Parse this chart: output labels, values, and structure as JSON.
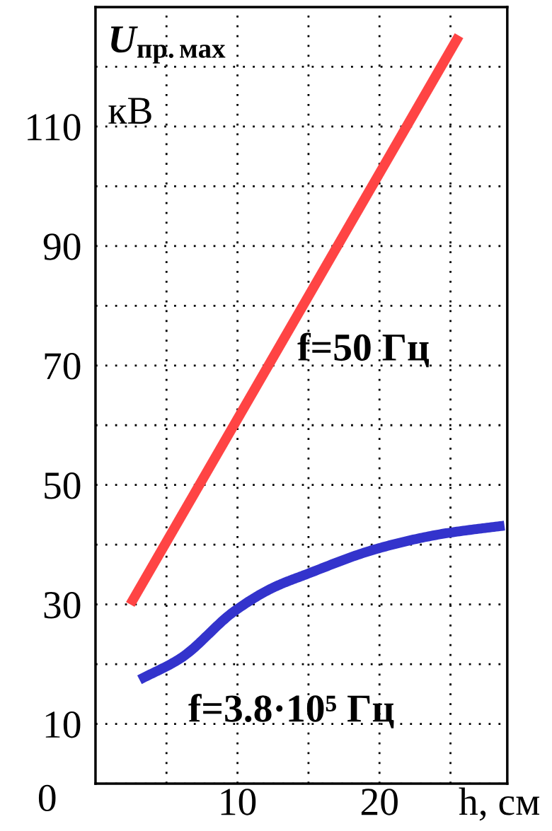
{
  "chart_data": {
    "type": "line",
    "ylabel": "U$_{пр.мах}$\nкВ",
    "xlabel": "h, см",
    "series": [
      {
        "color": "#ff4444",
        "x": [
          2.45,
          25.6
        ],
        "values": [
          30,
          125.2
        ]
      },
      {
        "color": "#3333cc",
        "x": [
          3.1,
          6,
          9.8,
          12.5,
          14.8,
          19.8,
          24.4,
          28.8
        ],
        "values": [
          17.4,
          21,
          28.9,
          32.8,
          35,
          39.3,
          41.8,
          43.2
        ]
      }
    ],
    "annotations": [
      "f=50 Гц",
      "f=3.8·10⁵ Гц"
    ],
    "xlim": [
      0,
      29
    ],
    "ylim": [
      0,
      130
    ],
    "xticks": [
      {
        "value": 5,
        "label": null
      },
      10,
      {
        "value": 15,
        "label": null
      },
      20,
      {
        "value": 25,
        "label": null
      }
    ],
    "yticks": [
      {
        "value": 0,
        "label": "0"
      },
      10,
      {
        "value": 20,
        "label": null
      },
      30,
      {
        "value": 40,
        "label": null
      },
      50,
      {
        "value": 60,
        "label": null
      },
      70,
      {
        "value": 80,
        "label": null
      },
      90,
      {
        "value": 100,
        "label": null
      },
      110,
      {
        "value": 120,
        "label": null
      }
    ],
    "grid": true,
    "line_style": "solid",
    "marker": "none"
  }
}
